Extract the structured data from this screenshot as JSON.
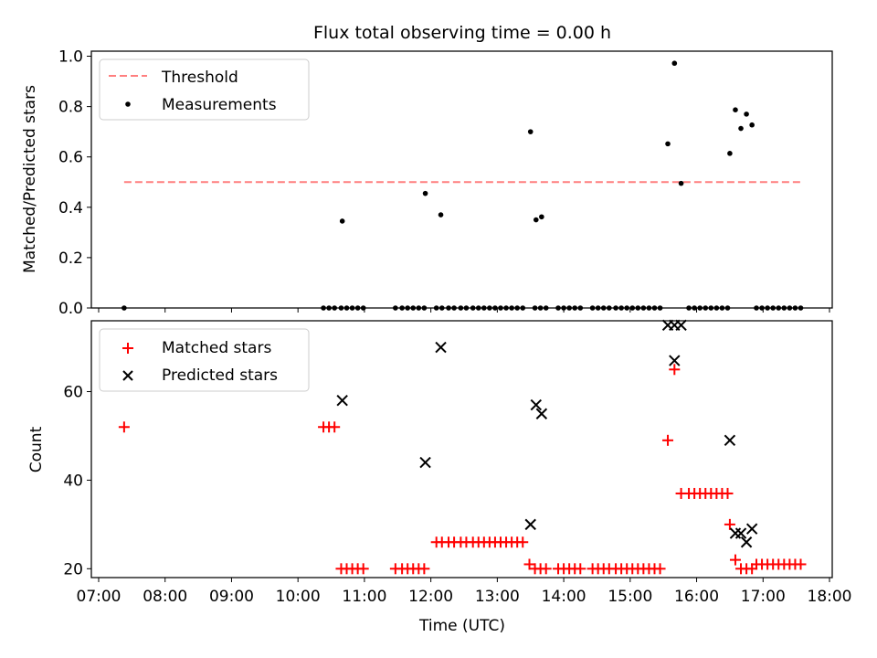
{
  "figure": {
    "title": "Flux total observing time = 0.00 h"
  },
  "chart_data": [
    {
      "type": "scatter",
      "panel": "top",
      "ylabel": "Matched/Predicted stars",
      "xlabel": "",
      "xlim": [
        "07:00",
        "18:00"
      ],
      "ylim": [
        0,
        1.02
      ],
      "yticks": [
        0.0,
        0.2,
        0.4,
        0.6,
        0.8,
        1.0
      ],
      "ytick_labels": [
        "0.0",
        "0.2",
        "0.4",
        "0.6",
        "0.8",
        "1.0"
      ],
      "grid": false,
      "legend": {
        "placement": "top-left",
        "entries": [
          {
            "label": "Threshold",
            "style": "dashed-line",
            "color": "#ff7f7f"
          },
          {
            "label": "Measurements",
            "style": "dot",
            "color": "#000000"
          }
        ]
      },
      "series": [
        {
          "name": "Threshold",
          "style": "dashed-line",
          "color": "#ff7f7f",
          "x": [
            "07:23",
            "17:36"
          ],
          "y": [
            0.5,
            0.5
          ]
        },
        {
          "name": "Measurements",
          "style": "dot",
          "color": "#000000",
          "x": [
            "07:23",
            "10:23",
            "10:28",
            "10:33",
            "10:39",
            "10:44",
            "10:49",
            "10:54",
            "10:59",
            "11:28",
            "11:34",
            "11:39",
            "11:44",
            "11:49",
            "11:54",
            "12:05",
            "12:10",
            "12:16",
            "12:21",
            "12:27",
            "12:32",
            "12:38",
            "12:43",
            "12:48",
            "12:53",
            "12:58",
            "13:03",
            "13:08",
            "13:13",
            "13:18",
            "13:23",
            "13:34",
            "13:39",
            "13:44",
            "13:55",
            "14:00",
            "14:05",
            "14:10",
            "14:15",
            "14:26",
            "14:31",
            "14:36",
            "14:41",
            "14:47",
            "14:52",
            "14:57",
            "15:02",
            "15:07",
            "15:12",
            "15:17",
            "15:22",
            "15:27",
            "15:53",
            "15:58",
            "16:03",
            "16:08",
            "16:13",
            "16:18",
            "16:23",
            "16:28",
            "16:54",
            "16:59",
            "17:04",
            "17:09",
            "17:14",
            "17:19",
            "17:24",
            "17:29",
            "17:34",
            "10:40",
            "11:55",
            "12:09",
            "13:30",
            "13:35",
            "13:40",
            "15:34",
            "15:40",
            "15:46",
            "16:30",
            "16:35",
            "16:40",
            "16:45",
            "16:50"
          ],
          "y": [
            0,
            0,
            0,
            0,
            0,
            0,
            0,
            0,
            0,
            0,
            0,
            0,
            0,
            0,
            0,
            0,
            0,
            0,
            0,
            0,
            0,
            0,
            0,
            0,
            0,
            0,
            0,
            0,
            0,
            0,
            0,
            0,
            0,
            0,
            0,
            0,
            0,
            0,
            0,
            0,
            0,
            0,
            0,
            0,
            0,
            0,
            0,
            0,
            0,
            0,
            0,
            0,
            0,
            0,
            0,
            0,
            0,
            0,
            0,
            0,
            0,
            0,
            0,
            0,
            0,
            0,
            0,
            0,
            0,
            0.345,
            0.455,
            0.37,
            0.7,
            0.35,
            0.362,
            0.652,
            0.972,
            0.495,
            0.614,
            0.787,
            0.713,
            0.77,
            0.727
          ]
        }
      ]
    },
    {
      "type": "scatter",
      "panel": "bottom",
      "ylabel": "Count",
      "xlabel": "Time (UTC)",
      "xlim": [
        "07:00",
        "18:00"
      ],
      "ylim": [
        18,
        76
      ],
      "yticks": [
        20,
        40,
        60
      ],
      "ytick_labels": [
        "20",
        "40",
        "60"
      ],
      "xticks": [
        "07:00",
        "08:00",
        "09:00",
        "10:00",
        "11:00",
        "12:00",
        "13:00",
        "14:00",
        "15:00",
        "16:00",
        "17:00",
        "18:00"
      ],
      "grid": false,
      "legend": {
        "placement": "top-left",
        "entries": [
          {
            "label": "Matched stars",
            "style": "plus",
            "color": "#ff0000"
          },
          {
            "label": "Predicted stars",
            "style": "x",
            "color": "#000000"
          }
        ]
      },
      "series": [
        {
          "name": "Matched stars",
          "style": "plus",
          "color": "#ff0000",
          "x": [
            "07:23",
            "10:23",
            "10:28",
            "10:33",
            "10:39",
            "10:44",
            "10:49",
            "10:54",
            "10:59",
            "11:28",
            "11:34",
            "11:39",
            "11:44",
            "11:49",
            "11:54",
            "12:05",
            "12:10",
            "12:16",
            "12:21",
            "12:27",
            "12:32",
            "12:38",
            "12:43",
            "12:48",
            "12:53",
            "12:58",
            "13:03",
            "13:08",
            "13:13",
            "13:18",
            "13:23",
            "13:29",
            "13:34",
            "13:39",
            "13:44",
            "13:55",
            "14:00",
            "14:05",
            "14:10",
            "14:15",
            "14:26",
            "14:31",
            "14:36",
            "14:41",
            "14:47",
            "14:52",
            "14:57",
            "15:02",
            "15:07",
            "15:12",
            "15:17",
            "15:22",
            "15:27",
            "15:34",
            "15:40",
            "15:46",
            "15:53",
            "15:58",
            "16:03",
            "16:08",
            "16:13",
            "16:18",
            "16:23",
            "16:28",
            "16:30",
            "16:35",
            "16:40",
            "16:45",
            "16:50",
            "16:54",
            "16:59",
            "17:04",
            "17:09",
            "17:14",
            "17:19",
            "17:24",
            "17:29",
            "17:34"
          ],
          "y": [
            52,
            52,
            52,
            52,
            20,
            20,
            20,
            20,
            20,
            20,
            20,
            20,
            20,
            20,
            20,
            26,
            26,
            26,
            26,
            26,
            26,
            26,
            26,
            26,
            26,
            26,
            26,
            26,
            26,
            26,
            26,
            21,
            20,
            20,
            20,
            20,
            20,
            20,
            20,
            20,
            20,
            20,
            20,
            20,
            20,
            20,
            20,
            20,
            20,
            20,
            20,
            20,
            20,
            49,
            65,
            37,
            37,
            37,
            37,
            37,
            37,
            37,
            37,
            37,
            30,
            22,
            20,
            20,
            20,
            21,
            21,
            21,
            21,
            21,
            21,
            21,
            21,
            21
          ]
        },
        {
          "name": "Predicted stars",
          "style": "x",
          "color": "#000000",
          "x": [
            "10:40",
            "11:55",
            "12:09",
            "13:30",
            "13:35",
            "13:40",
            "15:34",
            "15:40",
            "15:40",
            "15:46",
            "16:30",
            "16:35",
            "16:40",
            "16:45",
            "16:50"
          ],
          "y": [
            58,
            44,
            70,
            30,
            57,
            55,
            75,
            75,
            67,
            75,
            49,
            28,
            28,
            26,
            29
          ]
        }
      ]
    }
  ]
}
